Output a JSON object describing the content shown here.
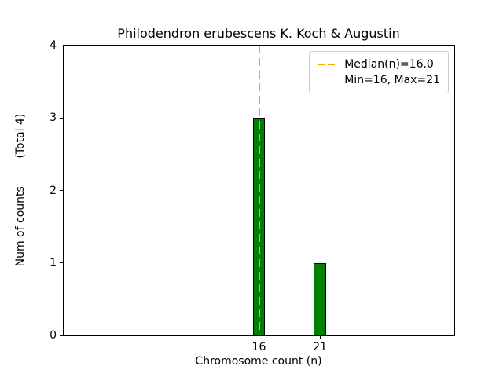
{
  "figure": {
    "background": "#ffffff"
  },
  "chart_data": {
    "type": "bar",
    "title": "Philodendron erubescens K. Koch & Augustin",
    "xlabel": "Chromosome count (n)",
    "ylabel": "Num of counts        (Total 4)",
    "categories": [
      "16",
      "21"
    ],
    "x": [
      16,
      21
    ],
    "values": [
      3,
      1
    ],
    "total_counts": 4,
    "bar_width": 1,
    "bar_color": "#008000",
    "bar_edge_color": "#000000",
    "xlim": [
      0,
      32
    ],
    "ylim": [
      0,
      4
    ],
    "yticks": [
      0,
      1,
      2,
      3,
      4
    ],
    "grid": false,
    "median_line": {
      "x": 16,
      "value_label": "16.0",
      "color": "#FFA500",
      "style": "dashed"
    },
    "legend": {
      "position": "upper-right",
      "entries": [
        {
          "swatch": "dashed-line",
          "color": "#FFA500",
          "label": "Median(n)=16.0"
        },
        {
          "swatch": "none",
          "color": null,
          "label": "Min=16, Max=21"
        }
      ]
    }
  }
}
